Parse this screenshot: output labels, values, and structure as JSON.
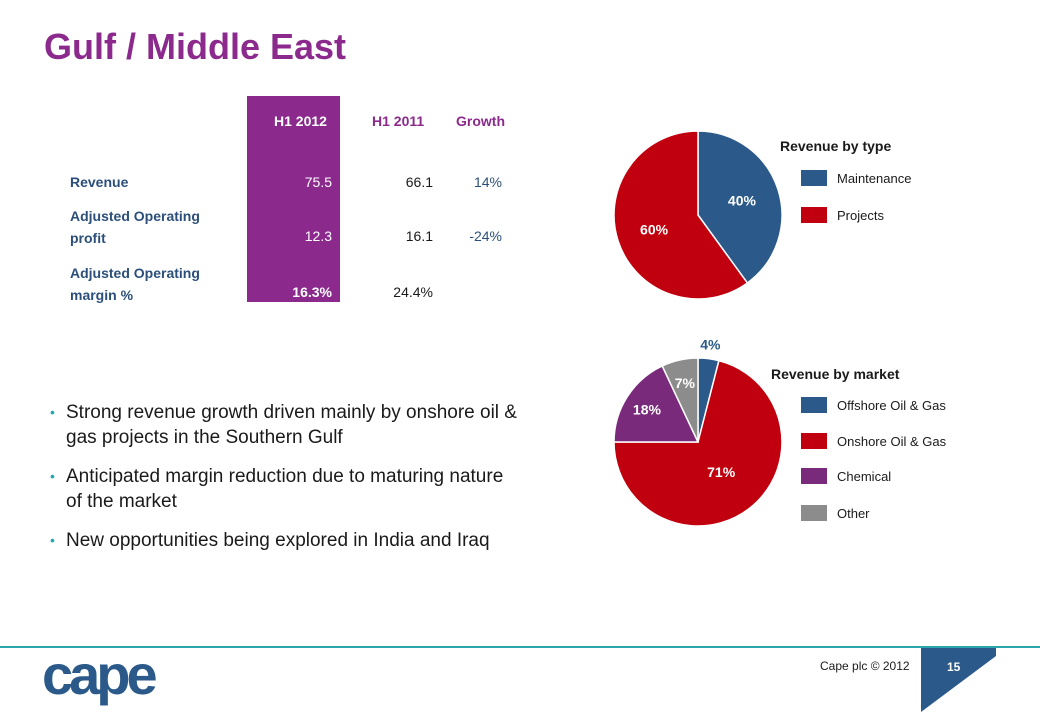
{
  "title": "Gulf / Middle East",
  "table": {
    "headers": [
      "H1 2012",
      "H1 2011",
      "Growth"
    ],
    "rows": [
      {
        "label_line1": "Revenue",
        "label_line2": "",
        "h1_2012": "75.5",
        "h1_2011": "66.1",
        "growth": "14%"
      },
      {
        "label_line1": "Adjusted Operating",
        "label_line2": "profit",
        "h1_2012": "12.3",
        "h1_2011": "16.1",
        "growth": "-24%"
      },
      {
        "label_line1": "Adjusted Operating",
        "label_line2": "margin %",
        "h1_2012": "16.3%",
        "h1_2011": "24.4%",
        "growth": ""
      }
    ]
  },
  "bullets": [
    "Strong revenue growth driven mainly by onshore oil & gas projects in the Southern Gulf",
    "Anticipated margin reduction due to maturing nature of the market",
    "New opportunities being explored in India and Iraq"
  ],
  "chart_data": [
    {
      "type": "pie",
      "title": "Revenue by type",
      "slices": [
        {
          "label": "Maintenance",
          "value": 40,
          "color": "#2b5a8a"
        },
        {
          "label": "Projects",
          "value": 60,
          "color": "#c0000e"
        }
      ],
      "data_labels": [
        "40%",
        "60%"
      ],
      "legend_position": "right"
    },
    {
      "type": "pie",
      "title": "Revenue by market",
      "slices": [
        {
          "label": "Offshore Oil & Gas",
          "value": 4,
          "color": "#2b5a8a"
        },
        {
          "label": "Onshore Oil & Gas",
          "value": 71,
          "color": "#c0000e"
        },
        {
          "label": "Chemical",
          "value": 18,
          "color": "#7a2a7a"
        },
        {
          "label": "Other",
          "value": 7,
          "color": "#8c8c8c"
        }
      ],
      "data_labels": [
        "4%",
        "71%",
        "18%",
        "7%"
      ],
      "legend_position": "right"
    }
  ],
  "footer": {
    "logo_text": "cape",
    "copyright": "Cape plc © 2012",
    "page_number": "15"
  },
  "colors": {
    "title": "#8b2a8c",
    "accent_teal": "#2aa5b0",
    "navy": "#2b4f7a"
  }
}
